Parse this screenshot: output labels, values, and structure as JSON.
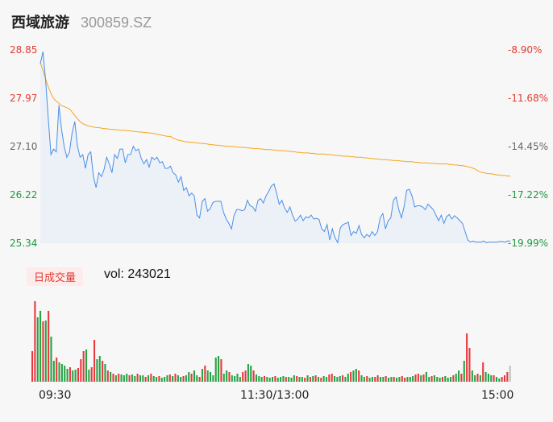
{
  "header": {
    "name": "西域旅游",
    "code": "300859.SZ"
  },
  "volume": {
    "badge": "日成交量",
    "label": "vol:",
    "value": "243021"
  },
  "colors": {
    "price": "#4a8fe7",
    "avg": "#f5a623",
    "up": "#e8383d",
    "down": "#25a244",
    "flat": "#555555"
  },
  "chart_data": {
    "type": "line",
    "price_axis": {
      "left_ticks": [
        "28.85",
        "27.97",
        "27.10",
        "26.22",
        "25.34"
      ],
      "right_ticks": [
        "-8.90%",
        "-11.68%",
        "-14.45%",
        "-17.22%",
        "-19.99%"
      ],
      "ylim": [
        25.34,
        28.85
      ]
    },
    "time_labels": [
      "09:30",
      "11:30/13:00",
      "15:00"
    ],
    "price_series": [
      28.6,
      28.82,
      28.3,
      27.6,
      26.95,
      27.05,
      27.0,
      27.85,
      27.4,
      27.1,
      26.9,
      27.0,
      27.35,
      27.55,
      27.1,
      26.9,
      26.95,
      26.7,
      26.95,
      27.0,
      26.55,
      26.35,
      26.62,
      26.55,
      26.68,
      26.9,
      26.78,
      26.62,
      26.95,
      26.88,
      27.05,
      27.05,
      26.8,
      26.95,
      26.95,
      27.1,
      27.02,
      27.05,
      26.88,
      26.78,
      26.86,
      26.72,
      26.9,
      26.86,
      26.9,
      26.8,
      26.82,
      26.7,
      26.7,
      26.74,
      26.62,
      26.58,
      26.45,
      26.55,
      26.3,
      26.35,
      26.2,
      26.25,
      26.2,
      25.85,
      25.8,
      26.1,
      26.15,
      25.92,
      25.97,
      26.08,
      26.1,
      26.1,
      26.1,
      25.9,
      25.78,
      25.7,
      25.6,
      25.85,
      25.95,
      25.95,
      25.93,
      25.95,
      26.12,
      26.02,
      26.0,
      25.92,
      26.12,
      26.15,
      26.07,
      26.2,
      26.28,
      26.38,
      26.42,
      26.25,
      26.05,
      26.12,
      25.98,
      25.9,
      26.0,
      25.85,
      25.74,
      25.78,
      25.85,
      25.75,
      25.82,
      25.8,
      25.85,
      25.78,
      25.79,
      25.77,
      25.6,
      25.55,
      25.68,
      25.4,
      25.6,
      25.44,
      25.35,
      25.62,
      25.68,
      25.7,
      25.72,
      25.48,
      25.55,
      25.52,
      25.66,
      25.5,
      25.44,
      25.5,
      25.46,
      25.55,
      25.48,
      25.55,
      25.8,
      25.88,
      25.6,
      25.75,
      25.8,
      26.12,
      26.18,
      25.95,
      25.8,
      26.0,
      26.3,
      26.32,
      26.2,
      26.0,
      26.02,
      26.02,
      26.0,
      25.95,
      26.05,
      26.0,
      25.95,
      25.85,
      25.75,
      25.85,
      25.7,
      25.82,
      25.86,
      25.78,
      25.84,
      25.8,
      25.75,
      25.7,
      25.55,
      25.4,
      25.36,
      25.38,
      25.36,
      25.36,
      25.36,
      25.38,
      25.35,
      25.36,
      25.36,
      25.36,
      25.36,
      25.37,
      25.37,
      25.36,
      25.38,
      25.38
    ],
    "avg_series": [
      28.62,
      28.48,
      28.32,
      28.18,
      28.06,
      27.97,
      27.92,
      27.88,
      27.84,
      27.82,
      27.8,
      27.78,
      27.72,
      27.66,
      27.6,
      27.55,
      27.51,
      27.49,
      27.47,
      27.46,
      27.45,
      27.44,
      27.44,
      27.43,
      27.42,
      27.42,
      27.41,
      27.41,
      27.4,
      27.4,
      27.39,
      27.39,
      27.39,
      27.38,
      27.38,
      27.37,
      27.37,
      27.36,
      27.36,
      27.35,
      27.35,
      27.34,
      27.34,
      27.33,
      27.32,
      27.31,
      27.3,
      27.29,
      27.28,
      27.28,
      27.25,
      27.23,
      27.21,
      27.2,
      27.19,
      27.18,
      27.18,
      27.17,
      27.17,
      27.16,
      27.16,
      27.15,
      27.15,
      27.14,
      27.13,
      27.13,
      27.12,
      27.12,
      27.11,
      27.11,
      27.1,
      27.1,
      27.1,
      27.09,
      27.09,
      27.08,
      27.08,
      27.08,
      27.07,
      27.07,
      27.06,
      27.06,
      27.06,
      27.05,
      27.05,
      27.04,
      27.04,
      27.04,
      27.03,
      27.03,
      27.02,
      27.02,
      27.02,
      27.01,
      27.01,
      27.0,
      27.0,
      26.99,
      26.99,
      26.98,
      26.98,
      26.98,
      26.97,
      26.97,
      26.96,
      26.96,
      26.96,
      26.96,
      26.95,
      26.95,
      26.94,
      26.94,
      26.93,
      26.93,
      26.92,
      26.92,
      26.92,
      26.91,
      26.91,
      26.9,
      26.9,
      26.9,
      26.89,
      26.89,
      26.88,
      26.88,
      26.87,
      26.87,
      26.86,
      26.86,
      26.86,
      26.85,
      26.85,
      26.84,
      26.84,
      26.84,
      26.83,
      26.83,
      26.82,
      26.82,
      26.82,
      26.81,
      26.81,
      26.8,
      26.8,
      26.8,
      26.8,
      26.79,
      26.79,
      26.79,
      26.78,
      26.78,
      26.78,
      26.78,
      26.77,
      26.77,
      26.76,
      26.76,
      26.75,
      26.75,
      26.74,
      26.73,
      26.72,
      26.7,
      26.68,
      26.65,
      26.63,
      26.62,
      26.61,
      26.6,
      26.6,
      26.59,
      26.58,
      26.58,
      26.57,
      26.57,
      26.56,
      26.56
    ],
    "volume_bars": [
      [
        38,
        "up"
      ],
      [
        100,
        "up"
      ],
      [
        80,
        "down"
      ],
      [
        88,
        "down"
      ],
      [
        75,
        "up"
      ],
      [
        76,
        "down"
      ],
      [
        88,
        "up"
      ],
      [
        56,
        "down"
      ],
      [
        26,
        "down"
      ],
      [
        30,
        "up"
      ],
      [
        24,
        "down"
      ],
      [
        22,
        "down"
      ],
      [
        20,
        "down"
      ],
      [
        16,
        "down"
      ],
      [
        18,
        "up"
      ],
      [
        14,
        "down"
      ],
      [
        15,
        "down"
      ],
      [
        17,
        "up"
      ],
      [
        28,
        "up"
      ],
      [
        38,
        "up"
      ],
      [
        40,
        "down"
      ],
      [
        15,
        "down"
      ],
      [
        18,
        "up"
      ],
      [
        52,
        "up"
      ],
      [
        28,
        "down"
      ],
      [
        32,
        "down"
      ],
      [
        26,
        "up"
      ],
      [
        22,
        "down"
      ],
      [
        14,
        "up"
      ],
      [
        12,
        "down"
      ],
      [
        10,
        "up"
      ],
      [
        8,
        "down"
      ],
      [
        10,
        "up"
      ],
      [
        9,
        "down"
      ],
      [
        8,
        "down"
      ],
      [
        10,
        "down"
      ],
      [
        8,
        "up"
      ],
      [
        9,
        "down"
      ],
      [
        7,
        "down"
      ],
      [
        10,
        "up"
      ],
      [
        8,
        "down"
      ],
      [
        8,
        "down"
      ],
      [
        6,
        "up"
      ],
      [
        8,
        "down"
      ],
      [
        10,
        "up"
      ],
      [
        7,
        "down"
      ],
      [
        6,
        "down"
      ],
      [
        7,
        "up"
      ],
      [
        5,
        "down"
      ],
      [
        6,
        "down"
      ],
      [
        8,
        "down"
      ],
      [
        9,
        "up"
      ],
      [
        7,
        "down"
      ],
      [
        10,
        "up"
      ],
      [
        8,
        "down"
      ],
      [
        6,
        "down"
      ],
      [
        7,
        "up"
      ],
      [
        8,
        "down"
      ],
      [
        12,
        "down"
      ],
      [
        10,
        "up"
      ],
      [
        14,
        "down"
      ],
      [
        8,
        "down"
      ],
      [
        6,
        "up"
      ],
      [
        16,
        "down"
      ],
      [
        20,
        "up"
      ],
      [
        14,
        "down"
      ],
      [
        12,
        "down"
      ],
      [
        8,
        "down"
      ],
      [
        30,
        "down"
      ],
      [
        32,
        "down"
      ],
      [
        28,
        "up"
      ],
      [
        10,
        "down"
      ],
      [
        14,
        "down"
      ],
      [
        12,
        "up"
      ],
      [
        8,
        "down"
      ],
      [
        7,
        "down"
      ],
      [
        10,
        "down"
      ],
      [
        6,
        "down"
      ],
      [
        12,
        "up"
      ],
      [
        14,
        "up"
      ],
      [
        22,
        "down"
      ],
      [
        20,
        "down"
      ],
      [
        14,
        "up"
      ],
      [
        9,
        "down"
      ],
      [
        7,
        "down"
      ],
      [
        6,
        "down"
      ],
      [
        7,
        "up"
      ],
      [
        6,
        "down"
      ],
      [
        5,
        "down"
      ],
      [
        6,
        "down"
      ],
      [
        7,
        "up"
      ],
      [
        5,
        "down"
      ],
      [
        6,
        "down"
      ],
      [
        7,
        "down"
      ],
      [
        6,
        "up"
      ],
      [
        6,
        "down"
      ],
      [
        5,
        "down"
      ],
      [
        8,
        "down"
      ],
      [
        7,
        "up"
      ],
      [
        6,
        "down"
      ],
      [
        6,
        "down"
      ],
      [
        5,
        "up"
      ],
      [
        8,
        "down"
      ],
      [
        6,
        "up"
      ],
      [
        7,
        "down"
      ],
      [
        8,
        "up"
      ],
      [
        6,
        "down"
      ],
      [
        5,
        "up"
      ],
      [
        7,
        "down"
      ],
      [
        6,
        "down"
      ],
      [
        9,
        "up"
      ],
      [
        10,
        "up"
      ],
      [
        7,
        "down"
      ],
      [
        6,
        "down"
      ],
      [
        7,
        "down"
      ],
      [
        8,
        "up"
      ],
      [
        6,
        "down"
      ],
      [
        10,
        "down"
      ],
      [
        12,
        "up"
      ],
      [
        14,
        "down"
      ],
      [
        16,
        "down"
      ],
      [
        14,
        "up"
      ],
      [
        8,
        "down"
      ],
      [
        6,
        "down"
      ],
      [
        7,
        "up"
      ],
      [
        5,
        "down"
      ],
      [
        6,
        "down"
      ],
      [
        6,
        "up"
      ],
      [
        8,
        "up"
      ],
      [
        6,
        "down"
      ],
      [
        6,
        "down"
      ],
      [
        7,
        "up"
      ],
      [
        5,
        "down"
      ],
      [
        6,
        "down"
      ],
      [
        6,
        "up"
      ],
      [
        5,
        "down"
      ],
      [
        6,
        "down"
      ],
      [
        7,
        "up"
      ],
      [
        5,
        "up"
      ],
      [
        6,
        "down"
      ],
      [
        6,
        "down"
      ],
      [
        7,
        "down"
      ],
      [
        9,
        "up"
      ],
      [
        10,
        "up"
      ],
      [
        8,
        "down"
      ],
      [
        9,
        "up"
      ],
      [
        12,
        "down"
      ],
      [
        6,
        "down"
      ],
      [
        7,
        "up"
      ],
      [
        8,
        "down"
      ],
      [
        6,
        "down"
      ],
      [
        5,
        "down"
      ],
      [
        6,
        "up"
      ],
      [
        7,
        "down"
      ],
      [
        5,
        "down"
      ],
      [
        6,
        "down"
      ],
      [
        8,
        "up"
      ],
      [
        10,
        "down"
      ],
      [
        14,
        "down"
      ],
      [
        10,
        "up"
      ],
      [
        26,
        "down"
      ],
      [
        60,
        "up"
      ],
      [
        42,
        "up"
      ],
      [
        14,
        "down"
      ],
      [
        8,
        "down"
      ],
      [
        10,
        "up"
      ],
      [
        8,
        "down"
      ],
      [
        24,
        "up"
      ],
      [
        12,
        "down"
      ],
      [
        10,
        "down"
      ],
      [
        8,
        "down"
      ],
      [
        8,
        "up"
      ],
      [
        6,
        "down"
      ],
      [
        4,
        "down"
      ],
      [
        6,
        "up"
      ],
      [
        8,
        "up"
      ],
      [
        12,
        "up"
      ],
      [
        20,
        "flat"
      ]
    ]
  }
}
